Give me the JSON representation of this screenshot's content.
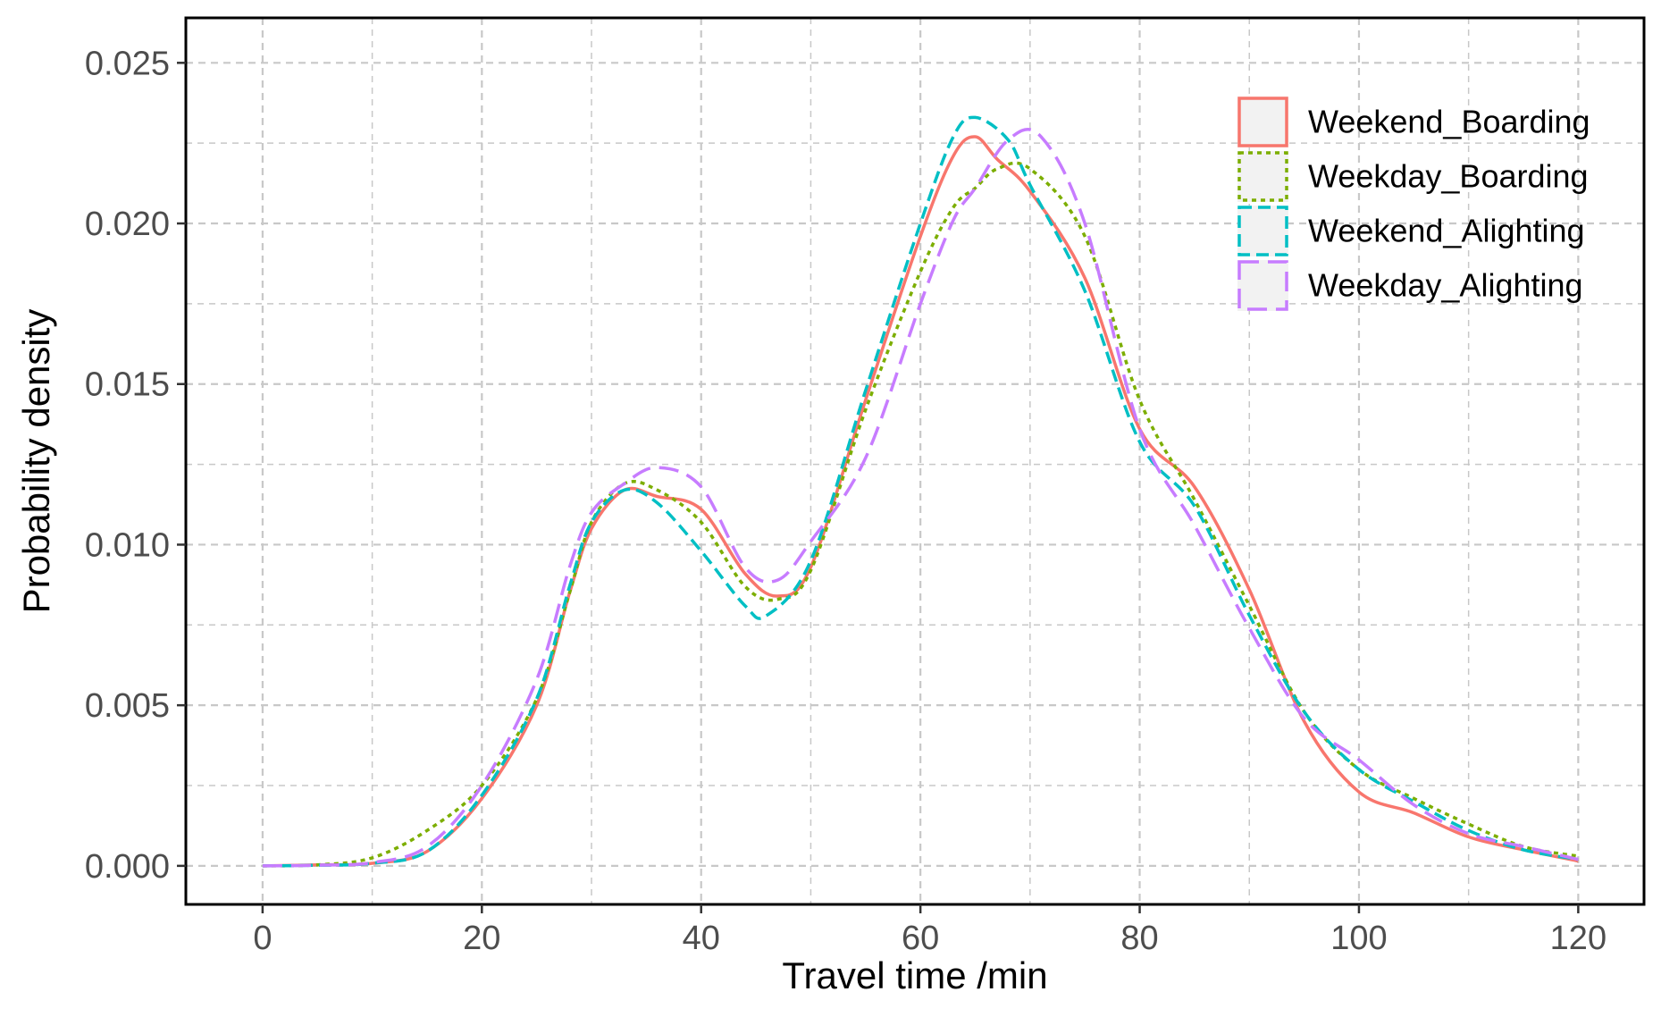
{
  "chart_data": {
    "type": "line",
    "title": "",
    "xlabel": "Travel time /min",
    "ylabel": "Probability density",
    "xlim": [
      -7,
      126
    ],
    "ylim": [
      -0.0012,
      0.0264
    ],
    "x_ticks": [
      0,
      20,
      40,
      60,
      80,
      100,
      120
    ],
    "x_tick_labels": [
      "0",
      "20",
      "40",
      "60",
      "80",
      "100",
      "120"
    ],
    "y_ticks": [
      0.0,
      0.005,
      0.01,
      0.015,
      0.02,
      0.025
    ],
    "y_tick_labels": [
      "0.000",
      "0.005",
      "0.010",
      "0.015",
      "0.020",
      "0.025"
    ],
    "grid": true,
    "legend_position": "top-right",
    "series": [
      {
        "name": "Weekend_Boarding",
        "color": "#F8766D",
        "dash": "solid",
        "points": [
          [
            0,
            0.0
          ],
          [
            5,
            3e-05
          ],
          [
            10,
            8e-05
          ],
          [
            15,
            0.00045
          ],
          [
            20,
            0.0021
          ],
          [
            25,
            0.005
          ],
          [
            28,
            0.0085
          ],
          [
            30,
            0.0105
          ],
          [
            33,
            0.0117
          ],
          [
            36,
            0.0115
          ],
          [
            40,
            0.0111
          ],
          [
            44,
            0.0091
          ],
          [
            47,
            0.0084
          ],
          [
            50,
            0.0093
          ],
          [
            55,
            0.0145
          ],
          [
            60,
            0.0196
          ],
          [
            63,
            0.0221
          ],
          [
            65,
            0.0227
          ],
          [
            67,
            0.022
          ],
          [
            70,
            0.021
          ],
          [
            75,
            0.0183
          ],
          [
            80,
            0.0136
          ],
          [
            85,
            0.0118
          ],
          [
            90,
            0.0086
          ],
          [
            95,
            0.0045
          ],
          [
            100,
            0.0023
          ],
          [
            105,
            0.00165
          ],
          [
            110,
            0.0009
          ],
          [
            115,
            0.0005
          ],
          [
            120,
            0.00015
          ]
        ]
      },
      {
        "name": "Weekday_Boarding",
        "color": "#7CAE00",
        "dash": "dotted",
        "points": [
          [
            0,
            0.0
          ],
          [
            5,
            3e-05
          ],
          [
            10,
            0.00025
          ],
          [
            15,
            0.0011
          ],
          [
            20,
            0.0025
          ],
          [
            25,
            0.0052
          ],
          [
            28,
            0.0085
          ],
          [
            30,
            0.0107
          ],
          [
            33,
            0.0119
          ],
          [
            36,
            0.0117
          ],
          [
            40,
            0.0107
          ],
          [
            44,
            0.0087
          ],
          [
            47,
            0.0083
          ],
          [
            50,
            0.0092
          ],
          [
            55,
            0.0142
          ],
          [
            60,
            0.0185
          ],
          [
            63,
            0.0205
          ],
          [
            65,
            0.0211
          ],
          [
            67,
            0.0217
          ],
          [
            70,
            0.0217
          ],
          [
            75,
            0.0196
          ],
          [
            80,
            0.0145
          ],
          [
            85,
            0.0114
          ],
          [
            90,
            0.0081
          ],
          [
            95,
            0.0048
          ],
          [
            100,
            0.003
          ],
          [
            105,
            0.0021
          ],
          [
            110,
            0.0013
          ],
          [
            115,
            0.0006
          ],
          [
            120,
            0.0003
          ]
        ]
      },
      {
        "name": "Weekend_Alighting",
        "color": "#00BFC4",
        "dash": "dashed",
        "points": [
          [
            0,
            0.0
          ],
          [
            5,
            2e-05
          ],
          [
            10,
            8e-05
          ],
          [
            15,
            0.00045
          ],
          [
            20,
            0.0022
          ],
          [
            25,
            0.0052
          ],
          [
            28,
            0.0087
          ],
          [
            30,
            0.0107
          ],
          [
            33,
            0.0117
          ],
          [
            36,
            0.0113
          ],
          [
            40,
            0.0098
          ],
          [
            44,
            0.0081
          ],
          [
            46,
            0.0078
          ],
          [
            50,
            0.0095
          ],
          [
            55,
            0.0148
          ],
          [
            60,
            0.02
          ],
          [
            63,
            0.0227
          ],
          [
            65,
            0.0233
          ],
          [
            68,
            0.0226
          ],
          [
            70,
            0.0212
          ],
          [
            75,
            0.0179
          ],
          [
            80,
            0.0132
          ],
          [
            85,
            0.0112
          ],
          [
            90,
            0.0078
          ],
          [
            95,
            0.0048
          ],
          [
            100,
            0.003
          ],
          [
            105,
            0.002
          ],
          [
            110,
            0.0011
          ],
          [
            115,
            0.0005
          ],
          [
            120,
            0.0002
          ]
        ]
      },
      {
        "name": "Weekday_Alighting",
        "color": "#C77CFF",
        "dash": "long-dashed",
        "points": [
          [
            0,
            0.0
          ],
          [
            5,
            2e-05
          ],
          [
            10,
            0.0001
          ],
          [
            15,
            0.0006
          ],
          [
            20,
            0.0025
          ],
          [
            25,
            0.0058
          ],
          [
            28,
            0.0093
          ],
          [
            30,
            0.011
          ],
          [
            33,
            0.0119
          ],
          [
            36,
            0.0124
          ],
          [
            40,
            0.0118
          ],
          [
            44,
            0.0093
          ],
          [
            47,
            0.0089
          ],
          [
            50,
            0.0101
          ],
          [
            55,
            0.0127
          ],
          [
            60,
            0.0175
          ],
          [
            63,
            0.0201
          ],
          [
            65,
            0.0211
          ],
          [
            68,
            0.0226
          ],
          [
            71,
            0.0227
          ],
          [
            75,
            0.02
          ],
          [
            80,
            0.0136
          ],
          [
            85,
            0.0106
          ],
          [
            90,
            0.0074
          ],
          [
            95,
            0.0046
          ],
          [
            100,
            0.0033
          ],
          [
            105,
            0.0019
          ],
          [
            110,
            0.001
          ],
          [
            115,
            0.0006
          ],
          [
            120,
            0.0002
          ]
        ]
      }
    ]
  }
}
